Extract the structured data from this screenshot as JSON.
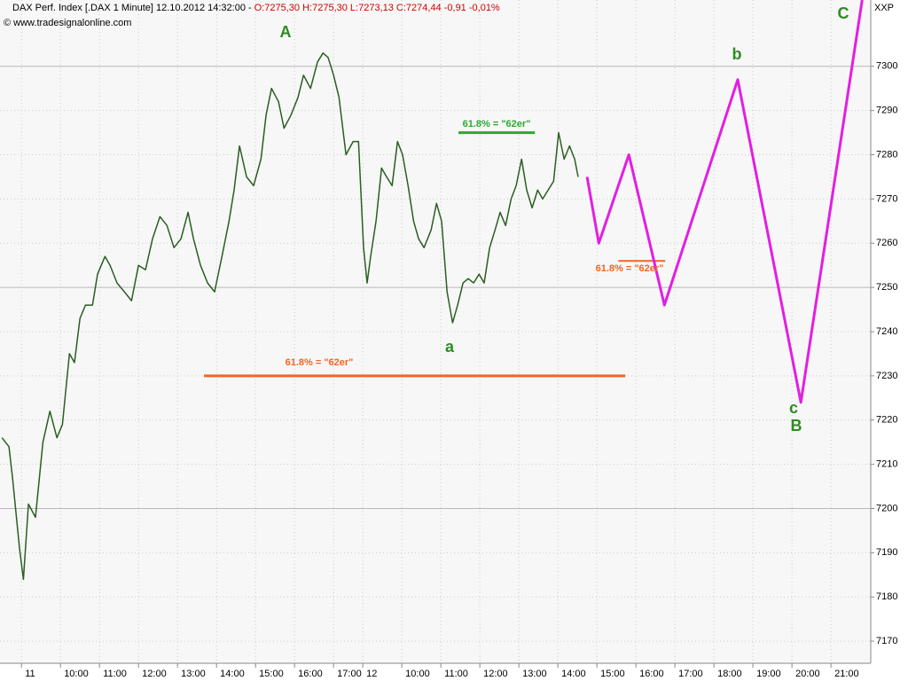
{
  "header": {
    "title": "DAX Perf. Index [.DAX  1 Minute] 12.10.2012 14:32:00 -",
    "quote": "O:7275,30 H:7275,30 L:7273,13 C:7274,44 -0,91 -0,01%",
    "copyright": "© www.tradesignalonline.com",
    "symbol": "XXP"
  },
  "chart_data": {
    "type": "line",
    "xlim": [
      -0.55,
      21.77
    ],
    "ylim": [
      7165,
      7315
    ],
    "xticks": [
      {
        "value": 0,
        "label": "11"
      },
      {
        "value": 1,
        "label": "10:00"
      },
      {
        "value": 2,
        "label": "11:00"
      },
      {
        "value": 3,
        "label": "12:00"
      },
      {
        "value": 4,
        "label": "13:00"
      },
      {
        "value": 5,
        "label": "14:00"
      },
      {
        "value": 6,
        "label": "15:00"
      },
      {
        "value": 7,
        "label": "16:00"
      },
      {
        "value": 8,
        "label": "17:00"
      },
      {
        "value": 8.75,
        "label": "12"
      },
      {
        "value": 9.75,
        "label": "10:00"
      },
      {
        "value": 10.75,
        "label": "11:00"
      },
      {
        "value": 11.75,
        "label": "12:00"
      },
      {
        "value": 12.75,
        "label": "13:00"
      },
      {
        "value": 13.75,
        "label": "14:00"
      },
      {
        "value": 14.75,
        "label": "15:00"
      },
      {
        "value": 15.75,
        "label": "16:00"
      },
      {
        "value": 16.75,
        "label": "17:00"
      },
      {
        "value": 17.75,
        "label": "18:00"
      },
      {
        "value": 18.75,
        "label": "19:00"
      },
      {
        "value": 19.75,
        "label": "20:00"
      },
      {
        "value": 20.75,
        "label": "21:00"
      }
    ],
    "yticks": [
      7170,
      7180,
      7190,
      7200,
      7210,
      7220,
      7230,
      7240,
      7250,
      7260,
      7270,
      7280,
      7290,
      7300
    ],
    "major_gridlines": [
      7200,
      7250,
      7300
    ],
    "grid": true,
    "series": [
      {
        "color": "#2a5e22",
        "x": [
          -0.5,
          -0.32,
          -0.23,
          -0.05,
          0.05,
          0.18,
          0.36,
          0.55,
          0.73,
          0.91,
          1.05,
          1.23,
          1.36,
          1.5,
          1.64,
          1.82,
          1.95,
          2.14,
          2.27,
          2.45,
          2.64,
          2.82,
          3.0,
          3.18,
          3.36,
          3.55,
          3.73,
          3.91,
          4.09,
          4.27,
          4.41,
          4.59,
          4.77,
          4.95,
          5.14,
          5.32,
          5.45,
          5.59,
          5.77,
          5.95,
          6.14,
          6.27,
          6.41,
          6.59,
          6.73,
          6.91,
          7.09,
          7.23,
          7.41,
          7.59,
          7.73,
          7.86,
          8.0,
          8.14,
          8.32,
          8.5,
          8.64,
          8.77,
          8.86,
          8.95,
          9.09,
          9.23,
          9.36,
          9.5,
          9.64,
          9.77,
          9.91,
          10.05,
          10.18,
          10.32,
          10.5,
          10.64,
          10.77,
          10.91,
          11.05,
          11.18,
          11.32,
          11.45,
          11.59,
          11.73,
          11.86,
          12.0,
          12.14,
          12.27,
          12.41,
          12.55,
          12.68,
          12.82,
          12.95,
          13.09,
          13.23,
          13.36,
          13.5,
          13.64,
          13.77,
          13.91,
          14.05,
          14.18,
          14.27
        ],
        "values": [
          7216,
          7214,
          7207,
          7191,
          7184,
          7201,
          7198,
          7215,
          7222,
          7216,
          7219,
          7235,
          7233,
          7243,
          7246,
          7246,
          7253,
          7257,
          7255,
          7251,
          7249,
          7247,
          7255,
          7254,
          7261,
          7266,
          7264,
          7259,
          7261,
          7267,
          7261,
          7255,
          7251,
          7249,
          7257,
          7265,
          7272,
          7282,
          7275,
          7273,
          7279,
          7289,
          7295,
          7292,
          7286,
          7289,
          7293,
          7298,
          7295,
          7301,
          7303,
          7302,
          7298,
          7293,
          7280,
          7283,
          7283,
          7259,
          7251,
          7257,
          7265,
          7277,
          7275,
          7273,
          7283,
          7280,
          7273,
          7265,
          7261,
          7259,
          7263,
          7269,
          7265,
          7249,
          7242,
          7246,
          7251,
          7252,
          7251,
          7253,
          7251,
          7259,
          7263,
          7267,
          7264,
          7270,
          7273,
          7279,
          7272,
          7268,
          7272,
          7270,
          7272,
          7274,
          7285,
          7279,
          7282,
          7279,
          7275
        ],
        "width": 1.5
      },
      {
        "color": "#e21ee2",
        "x": [
          14.5,
          14.8,
          15.57,
          16.48,
          18.36,
          19.98,
          21.55
        ],
        "values": [
          7275,
          7260,
          7280,
          7246,
          7297,
          7224,
          7315
        ],
        "width": 3
      }
    ],
    "hlines": [
      {
        "value": 7230,
        "x": [
          4.68,
          15.48
        ],
        "color": "#f26522",
        "width": 3
      },
      {
        "value": 7285,
        "x": [
          11.2,
          13.16
        ],
        "color": "#2ea82e",
        "width": 3
      },
      {
        "value": 7256,
        "x": [
          15.3,
          16.5
        ],
        "color": "#f26522",
        "width": 2
      }
    ],
    "annotations": [
      "61.8% = \"62er\"",
      "61.8% = \"62er\"",
      "61.8% = \"62er\"",
      "A",
      "a",
      "b",
      "c",
      "B",
      "C"
    ]
  }
}
